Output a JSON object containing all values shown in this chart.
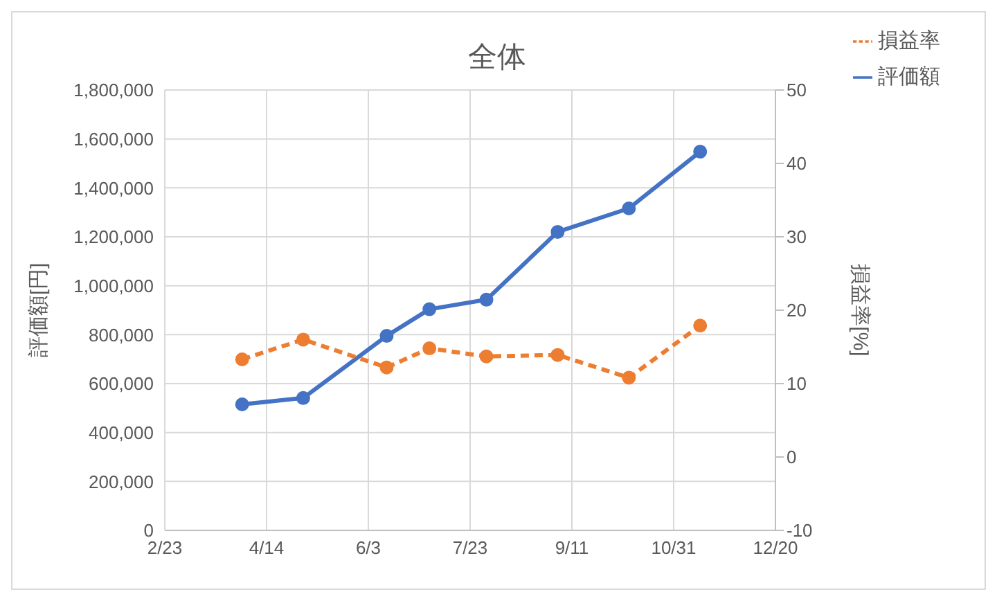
{
  "chart_data": {
    "type": "line",
    "title": "全体",
    "ylabel": "評価額[円]",
    "y2label": "損益率[%]",
    "x": [
      "--04-02",
      "--05-02",
      "--06-12",
      "--07-03",
      "--07-31",
      "--09-04",
      "--10-09",
      "--11-13"
    ],
    "series": [
      {
        "name": "評価額",
        "color": "#4472c4",
        "line_style": "solid",
        "values": [
          515000,
          541000,
          795000,
          904000,
          943000,
          1220000,
          1316000,
          1548000
        ]
      },
      {
        "name": "損益率",
        "color": "#ed7d31",
        "line_style": "dashed",
        "axis": "y2",
        "values": [
          13.3,
          16.0,
          12.2,
          14.8,
          13.7,
          13.9,
          10.8,
          17.9
        ]
      }
    ],
    "xlim": [
      "--02-23",
      "--12-20"
    ],
    "xticks": [
      {
        "value": "--02-23",
        "label": "2/23"
      },
      {
        "value": "--04-14",
        "label": "4/14"
      },
      {
        "value": "--06-03",
        "label": "6/3"
      },
      {
        "value": "--07-23",
        "label": "7/23"
      },
      {
        "value": "--09-11",
        "label": "9/11"
      },
      {
        "value": "--10-31",
        "label": "10/31"
      },
      {
        "value": "--12-20",
        "label": "12/20"
      }
    ],
    "ylim": [
      0,
      1800000
    ],
    "yticks": [
      {
        "value": 0,
        "label": "0"
      },
      {
        "value": 200000,
        "label": "200,000"
      },
      {
        "value": 400000,
        "label": "400,000"
      },
      {
        "value": 600000,
        "label": "600,000"
      },
      {
        "value": 800000,
        "label": "800,000"
      },
      {
        "value": 1000000,
        "label": "1,000,000"
      },
      {
        "value": 1200000,
        "label": "1,200,000"
      },
      {
        "value": 1400000,
        "label": "1,400,000"
      },
      {
        "value": 1600000,
        "label": "1,600,000"
      },
      {
        "value": 1800000,
        "label": "1,800,000"
      }
    ],
    "y2lim": [
      -10,
      50
    ],
    "y2ticks": [
      -10,
      0,
      10,
      20,
      30,
      40,
      50
    ],
    "grid": true,
    "legend": "top right",
    "marker": "circle"
  }
}
